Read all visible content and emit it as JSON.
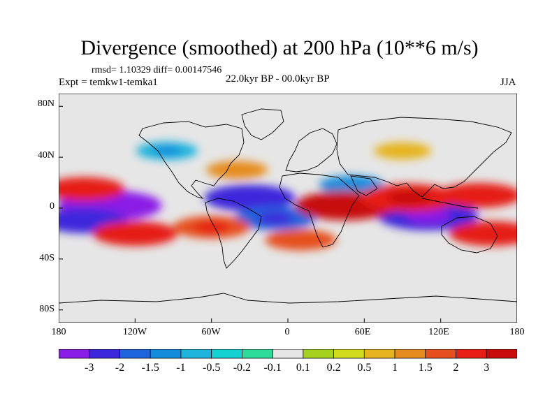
{
  "title": "Divergence (smoothed) at 200 hPa (10**6 m/s)",
  "stats_text": "rmsd= 1.10329 diff= 0.00147546",
  "experiment_text": "Expt = temkw1-temka1",
  "period_text": "22.0kyr BP - 00.0kyr BP",
  "season": "JJA",
  "lat_labels": [
    "80N",
    "40N",
    "0",
    "40S",
    "80S"
  ],
  "lon_labels": [
    "180",
    "120W",
    "60W",
    "0",
    "60E",
    "120E",
    "180"
  ],
  "colorbar": {
    "labels": [
      "-3",
      "-2",
      "-1.5",
      "-1",
      "-0.5",
      "-0.2",
      "-0.1",
      "0.1",
      "0.2",
      "0.5",
      "1",
      "1.5",
      "2",
      "3"
    ],
    "colors": [
      "#8a1ee6",
      "#3c28dc",
      "#1e64dc",
      "#148cdc",
      "#1eb4dc",
      "#14d2d2",
      "#2ddc9b",
      "#e6e6e6",
      "#a5d21e",
      "#d2dc1e",
      "#e6b41e",
      "#e68c1e",
      "#e6501e",
      "#e61e14",
      "#c80a0a"
    ]
  },
  "chart_data": {
    "type": "heatmap",
    "title": "Divergence (smoothed) at 200 hPa (10**6 m/s)",
    "subtitle": "22.0kyr BP - 00.0kyr BP",
    "season": "JJA",
    "xlabel": "",
    "ylabel": "",
    "x_range": [
      -180,
      180
    ],
    "y_range": [
      -90,
      90
    ],
    "x_ticks": [
      "180",
      "120W",
      "60W",
      "0",
      "60E",
      "120E",
      "180"
    ],
    "y_ticks": [
      "80N",
      "40N",
      "0",
      "40S",
      "80S"
    ],
    "levels": [
      -3,
      -2,
      -1.5,
      -1,
      -0.5,
      -0.2,
      -0.1,
      0.1,
      0.2,
      0.5,
      1,
      1.5,
      2,
      3
    ],
    "features": [
      {
        "name": "negative-band-east-pacific",
        "lon": -140,
        "lat": 2,
        "value": -3.2
      },
      {
        "name": "negative-band-south-pacific",
        "lon": -160,
        "lat": -10,
        "value": -2.2
      },
      {
        "name": "negative-atlantic-equator",
        "lon": -30,
        "lat": 8,
        "value": -2.5
      },
      {
        "name": "negative-south-atlantic",
        "lon": -10,
        "lat": -8,
        "value": -2.0
      },
      {
        "name": "negative-indian-ocean",
        "lon": 110,
        "lat": -6,
        "value": -3.0
      },
      {
        "name": "negative-arabia",
        "lon": 50,
        "lat": 18,
        "value": -1.2
      },
      {
        "name": "negative-north-america",
        "lon": -95,
        "lat": 45,
        "value": -1.0
      },
      {
        "name": "positive-africa",
        "lon": 45,
        "lat": 2,
        "value": 3.0
      },
      {
        "name": "positive-maritime-continent",
        "lon": 95,
        "lat": 8,
        "value": 2.8
      },
      {
        "name": "positive-west-pacific",
        "lon": 150,
        "lat": 10,
        "value": 2.2
      },
      {
        "name": "positive-north-pacific",
        "lon": -160,
        "lat": 15,
        "value": 2.0
      },
      {
        "name": "positive-south-pacific-band",
        "lon": -120,
        "lat": -20,
        "value": 2.2
      },
      {
        "name": "positive-south-america",
        "lon": -60,
        "lat": -15,
        "value": 1.8
      },
      {
        "name": "positive-australia-east",
        "lon": 160,
        "lat": -20,
        "value": 2.2
      },
      {
        "name": "positive-south-atlantic",
        "lon": 10,
        "lat": -25,
        "value": 1.5
      },
      {
        "name": "positive-north-atlantic",
        "lon": -40,
        "lat": 30,
        "value": 1.0
      },
      {
        "name": "positive-asia-midlat",
        "lon": 90,
        "lat": 45,
        "value": 0.8
      }
    ]
  }
}
